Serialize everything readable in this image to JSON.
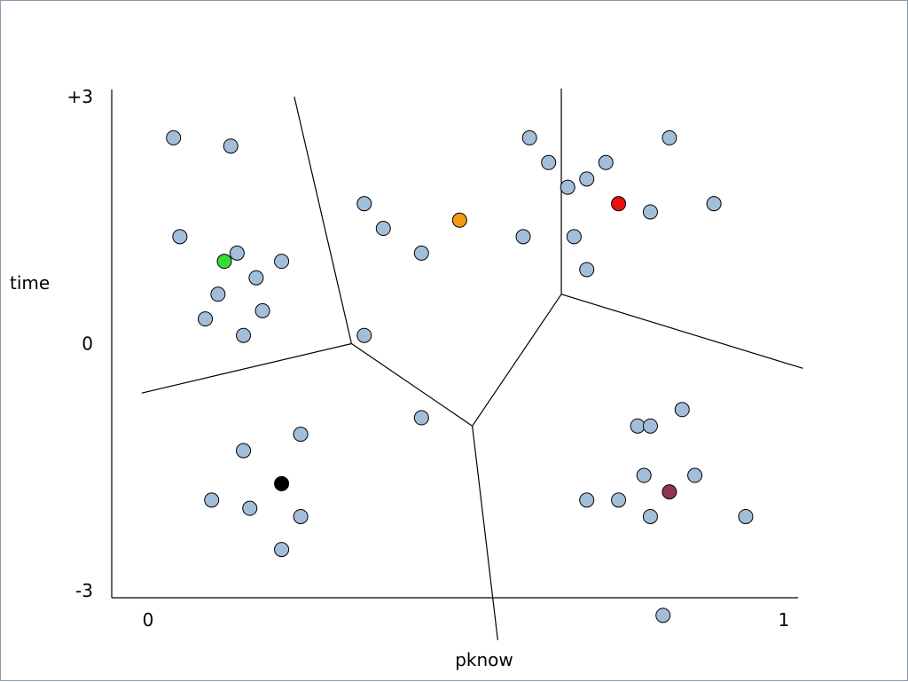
{
  "chart_data": {
    "type": "scatter",
    "title": "",
    "xlabel": "pknow",
    "ylabel": "time",
    "xlim": [
      0,
      1
    ],
    "ylim": [
      -3,
      3
    ],
    "x_tick_labels": [
      {
        "value": 0,
        "label": "0"
      },
      {
        "value": 1,
        "label": "1"
      }
    ],
    "y_tick_labels": [
      {
        "value": 3,
        "label": "+3"
      },
      {
        "value": 0,
        "label": "0"
      },
      {
        "value": -3,
        "label": "-3"
      }
    ],
    "point_color": "#a3bed8",
    "point_stroke": "#000000",
    "points": [
      {
        "x": 0.04,
        "y": 2.5
      },
      {
        "x": 0.13,
        "y": 2.4
      },
      {
        "x": 0.05,
        "y": 1.3
      },
      {
        "x": 0.14,
        "y": 1.1
      },
      {
        "x": 0.21,
        "y": 1.0
      },
      {
        "x": 0.11,
        "y": 0.6
      },
      {
        "x": 0.17,
        "y": 0.8
      },
      {
        "x": 0.09,
        "y": 0.3
      },
      {
        "x": 0.18,
        "y": 0.4
      },
      {
        "x": 0.15,
        "y": 0.1
      },
      {
        "x": 0.34,
        "y": 1.7
      },
      {
        "x": 0.37,
        "y": 1.4
      },
      {
        "x": 0.43,
        "y": 1.1
      },
      {
        "x": 0.34,
        "y": 0.1
      },
      {
        "x": 0.59,
        "y": 1.3
      },
      {
        "x": 0.43,
        "y": -0.9
      },
      {
        "x": 0.6,
        "y": 2.5
      },
      {
        "x": 0.63,
        "y": 2.2
      },
      {
        "x": 0.66,
        "y": 1.9
      },
      {
        "x": 0.69,
        "y": 2.0
      },
      {
        "x": 0.72,
        "y": 2.2
      },
      {
        "x": 0.82,
        "y": 2.5
      },
      {
        "x": 0.79,
        "y": 1.6
      },
      {
        "x": 0.89,
        "y": 1.7
      },
      {
        "x": 0.67,
        "y": 1.3
      },
      {
        "x": 0.69,
        "y": 0.9
      },
      {
        "x": 0.15,
        "y": -1.3
      },
      {
        "x": 0.24,
        "y": -1.1
      },
      {
        "x": 0.1,
        "y": -1.9
      },
      {
        "x": 0.16,
        "y": -2.0
      },
      {
        "x": 0.24,
        "y": -2.1
      },
      {
        "x": 0.21,
        "y": -2.5
      },
      {
        "x": 0.77,
        "y": -1.0
      },
      {
        "x": 0.79,
        "y": -1.0
      },
      {
        "x": 0.84,
        "y": -0.8
      },
      {
        "x": 0.78,
        "y": -1.6
      },
      {
        "x": 0.86,
        "y": -1.6
      },
      {
        "x": 0.69,
        "y": -1.9
      },
      {
        "x": 0.74,
        "y": -1.9
      },
      {
        "x": 0.79,
        "y": -2.1
      },
      {
        "x": 0.94,
        "y": -2.1
      },
      {
        "x": 0.81,
        "y": -3.3
      }
    ],
    "centroids": [
      {
        "x": 0.12,
        "y": 1.0,
        "color": "#33dd33"
      },
      {
        "x": 0.49,
        "y": 1.5,
        "color": "#f39c12"
      },
      {
        "x": 0.74,
        "y": 1.7,
        "color": "#e81010"
      },
      {
        "x": 0.21,
        "y": -1.7,
        "color": "#000000"
      },
      {
        "x": 0.82,
        "y": -1.8,
        "color": "#8e3558"
      }
    ],
    "boundary_color": "#000000",
    "boundaries": [
      [
        {
          "x": -0.01,
          "y": -0.6
        },
        {
          "x": 0.32,
          "y": 0.0
        }
      ],
      [
        {
          "x": 0.23,
          "y": 3.0
        },
        {
          "x": 0.32,
          "y": 0.0
        }
      ],
      [
        {
          "x": 0.32,
          "y": 0.0
        },
        {
          "x": 0.51,
          "y": -1.0
        }
      ],
      [
        {
          "x": 0.51,
          "y": -1.0
        },
        {
          "x": 0.55,
          "y": -3.6
        }
      ],
      [
        {
          "x": 0.51,
          "y": -1.0
        },
        {
          "x": 0.65,
          "y": 0.6
        }
      ],
      [
        {
          "x": 0.65,
          "y": 0.6
        },
        {
          "x": 0.65,
          "y": 3.1
        }
      ],
      [
        {
          "x": 0.65,
          "y": 0.6
        },
        {
          "x": 1.03,
          "y": -0.3
        }
      ]
    ]
  }
}
